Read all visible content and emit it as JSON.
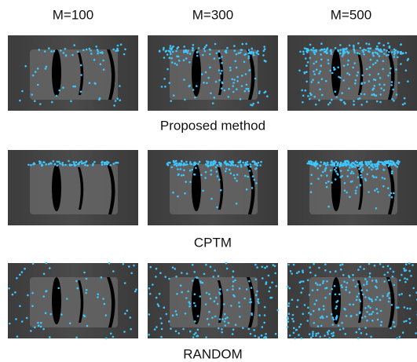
{
  "columns": [
    "M=100",
    "M=300",
    "M=500"
  ],
  "rows": [
    {
      "label": "Proposed method"
    },
    {
      "label": "CPTM"
    },
    {
      "label": "RANDOM"
    }
  ]
}
